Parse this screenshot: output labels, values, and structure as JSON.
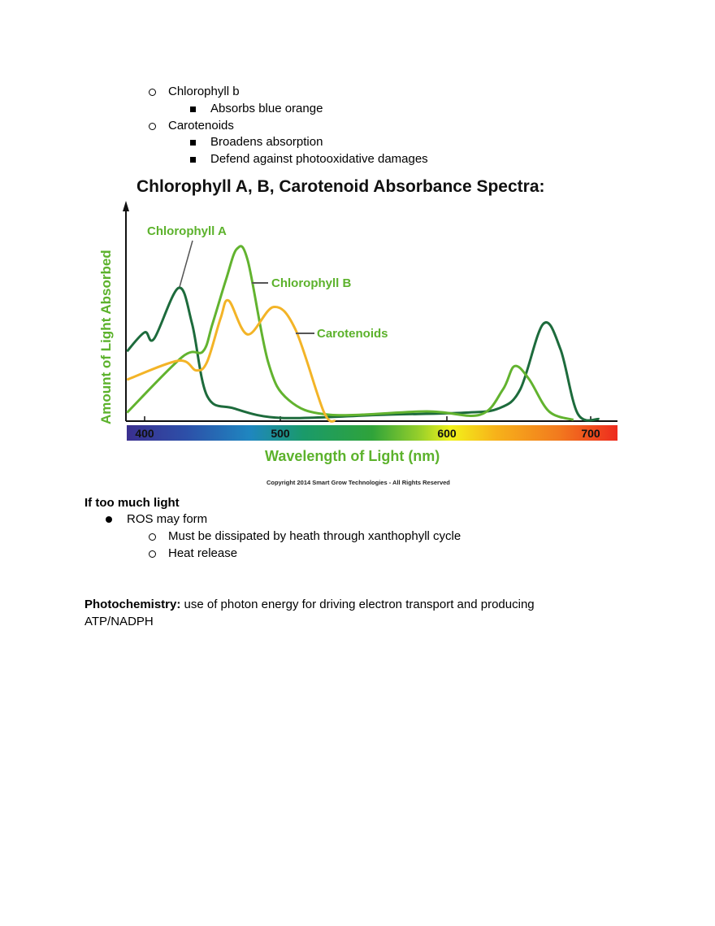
{
  "top_list": {
    "chl_b": "Chlorophyll b",
    "chl_b_sub": "Absorbs blue orange",
    "carotenoids": "Carotenoids",
    "carotenoids_sub1": "Broadens absorption",
    "carotenoids_sub2": "Defend against photooxidative damages"
  },
  "chart_data": {
    "type": "line",
    "title": "Chlorophyll A, B, Carotenoid Absorbance Spectra:",
    "xlabel": "Wavelength of Light (nm)",
    "ylabel": "Amount of Light Absorbed",
    "xticks": [
      "400",
      "500",
      "600",
      "700"
    ],
    "xlim": [
      387,
      710
    ],
    "ylim": [
      0,
      100
    ],
    "copyright": "Copyright 2014 Smart Grow Technologies - All Rights Reserved",
    "series": [
      {
        "name": "Chlorophyll A",
        "color": "#1d6b3c",
        "x": [
          387,
          400,
          407,
          425,
          435,
          446,
          466,
          501,
          561,
          612,
          636,
          651,
          667,
          679,
          691,
          706
        ],
        "y": [
          33,
          42,
          39,
          63,
          46,
          12,
          6,
          1.5,
          3,
          4,
          6,
          15,
          46,
          34,
          3.5,
          1
        ]
      },
      {
        "name": "Chlorophyll B",
        "color": "#62b32f",
        "x": [
          387,
          428,
          443,
          450,
          460,
          468,
          476,
          491,
          505,
          530,
          588,
          623,
          639,
          647,
          657,
          671,
          688
        ],
        "y": [
          4,
          30.5,
          33,
          46,
          67,
          81.5,
          76,
          28,
          10,
          3,
          4.6,
          3,
          15,
          26,
          20,
          4.6,
          0.6
        ]
      },
      {
        "name": "Carotenoids",
        "color": "#f3b427",
        "x": [
          387,
          425,
          438,
          446,
          456,
          462,
          476,
          495,
          509,
          526,
          533
        ],
        "y": [
          19.6,
          28.6,
          24,
          28,
          48.7,
          57,
          41,
          54,
          43.5,
          4.6,
          0
        ]
      }
    ]
  },
  "light": {
    "heading": "If too much light",
    "ros": "ROS may form",
    "sub1": "Must be dissipated by heath through xanthophyll cycle",
    "sub2": "Heat release"
  },
  "photo": {
    "term": "Photochemistry:",
    "def_line1": " use of photon energy for driving electron transport and producing",
    "def_line2": "ATP/NADPH"
  }
}
